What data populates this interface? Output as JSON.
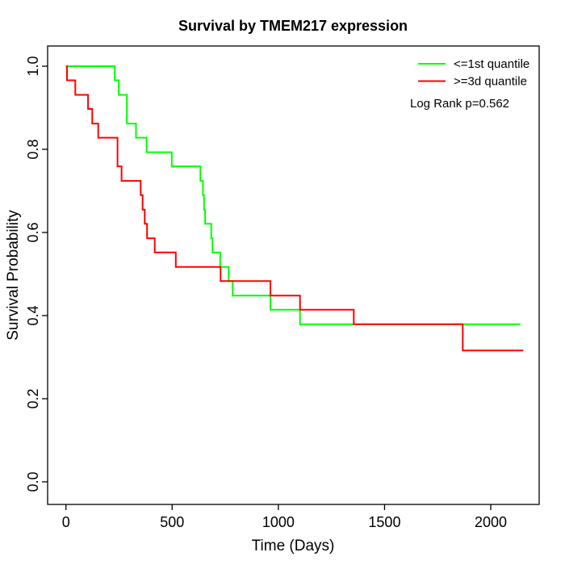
{
  "title": "Survival by TMEM217 expression",
  "chart_data": {
    "type": "line",
    "subtype": "kaplan-meier-step-curves",
    "title": "Survival by TMEM217 expression",
    "xlabel": "Time (Days)",
    "ylabel": "Survival Probability",
    "xlim": [
      0,
      2230
    ],
    "ylim": [
      0.0,
      1.0
    ],
    "grid": false,
    "legend_position": "top-right",
    "log_rank_p": 0.562,
    "x_ticks": [
      0,
      500,
      1000,
      1500,
      2000
    ],
    "x_tick_labels": [
      "0",
      "500",
      "1000",
      "1500",
      "2000"
    ],
    "y_ticks": [
      0.0,
      0.2,
      0.4,
      0.6,
      0.8,
      1.0
    ],
    "y_tick_labels": [
      "0.0",
      "0.2",
      "0.4",
      "0.6",
      "0.8",
      "1.0"
    ],
    "series": [
      {
        "name": "<=1st quantile",
        "color": "#00ff00",
        "end_time": 2140,
        "steps": [
          [
            0,
            1.0
          ],
          [
            230,
            0.966
          ],
          [
            249,
            0.931
          ],
          [
            287,
            0.862
          ],
          [
            330,
            0.828
          ],
          [
            380,
            0.793
          ],
          [
            498,
            0.759
          ],
          [
            633,
            0.724
          ],
          [
            645,
            0.69
          ],
          [
            650,
            0.655
          ],
          [
            655,
            0.621
          ],
          [
            684,
            0.586
          ],
          [
            690,
            0.552
          ],
          [
            726,
            0.517
          ],
          [
            766,
            0.483
          ],
          [
            785,
            0.448
          ],
          [
            963,
            0.414
          ],
          [
            1102,
            0.379
          ]
        ]
      },
      {
        "name": ">=3d quantile",
        "color": "#ff0000",
        "end_time": 2153,
        "steps": [
          [
            0,
            1.0
          ],
          [
            5,
            0.966
          ],
          [
            44,
            0.931
          ],
          [
            104,
            0.897
          ],
          [
            124,
            0.862
          ],
          [
            152,
            0.828
          ],
          [
            243,
            0.759
          ],
          [
            262,
            0.724
          ],
          [
            352,
            0.69
          ],
          [
            361,
            0.655
          ],
          [
            371,
            0.621
          ],
          [
            382,
            0.586
          ],
          [
            418,
            0.552
          ],
          [
            517,
            0.517
          ],
          [
            728,
            0.483
          ],
          [
            963,
            0.448
          ],
          [
            1102,
            0.414
          ],
          [
            1355,
            0.379
          ],
          [
            1868,
            0.316
          ]
        ]
      }
    ]
  },
  "legend": {
    "items": [
      {
        "label": "<=1st quantile",
        "color": "#00ff00"
      },
      {
        "label": ">=3d quantile",
        "color": "#ff0000"
      }
    ],
    "annotation": "Log Rank p=0.562"
  }
}
